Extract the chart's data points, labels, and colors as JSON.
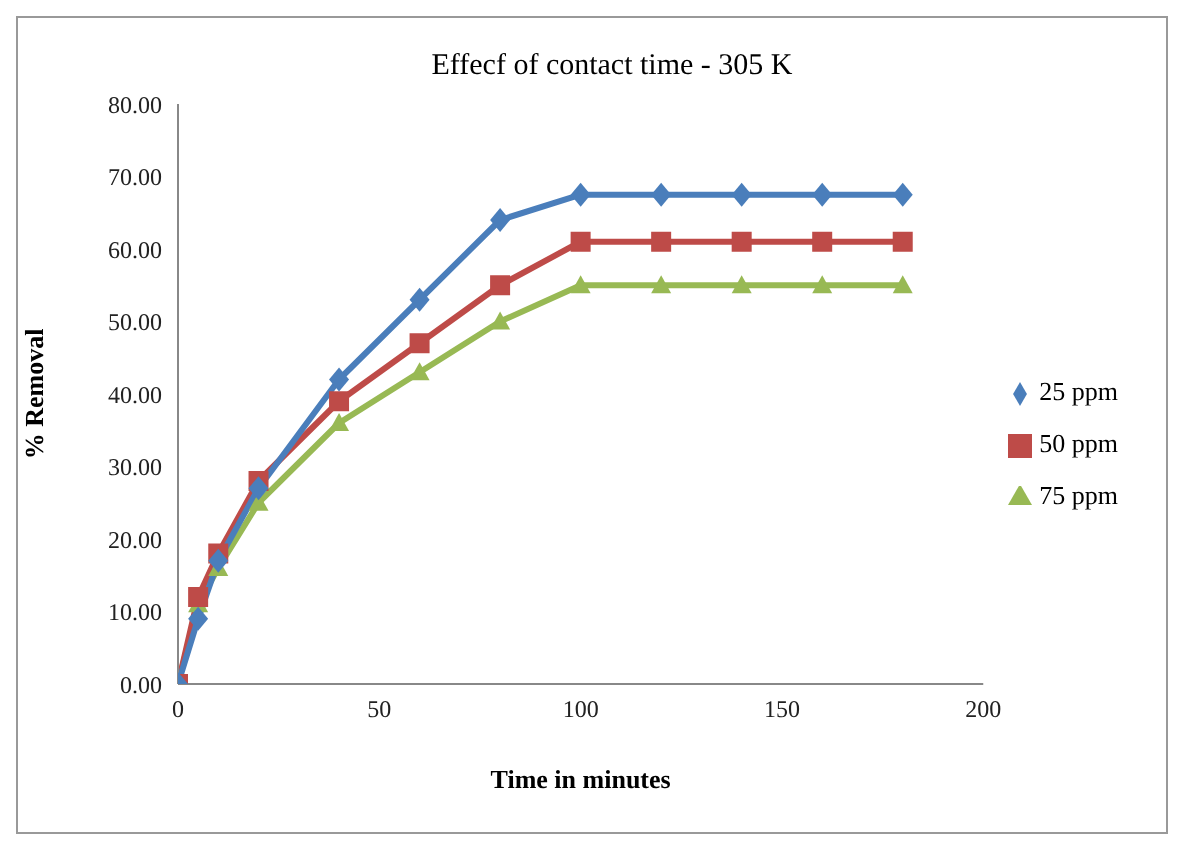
{
  "chart_data": {
    "type": "line",
    "title": "Effecf of contact time - 305 K",
    "xlabel": "Time in minutes",
    "ylabel": "% Removal",
    "x": [
      0,
      5,
      10,
      20,
      40,
      60,
      80,
      100,
      120,
      140,
      160,
      180
    ],
    "series": [
      {
        "name": "25 ppm",
        "color": "#4a7ebb",
        "marker": "diamond",
        "values": [
          0,
          9,
          17,
          27,
          42,
          53,
          64,
          67.5,
          67.5,
          67.5,
          67.5,
          67.5
        ]
      },
      {
        "name": "50 ppm",
        "color": "#be4b48",
        "marker": "square",
        "values": [
          0,
          12,
          18,
          28,
          39,
          47,
          55,
          61,
          61,
          61,
          61,
          61
        ]
      },
      {
        "name": "75 ppm",
        "color": "#98b954",
        "marker": "triangle",
        "values": [
          0,
          11,
          16,
          25,
          36,
          43,
          50,
          55,
          55,
          55,
          55,
          55
        ]
      }
    ],
    "xlim": [
      0,
      200
    ],
    "xticks": [
      0,
      50,
      100,
      150,
      200
    ],
    "ylim": [
      0,
      80
    ],
    "yticks": [
      {
        "value": 0,
        "label": "0.00"
      },
      {
        "value": 10,
        "label": "10.00"
      },
      {
        "value": 20,
        "label": "20.00"
      },
      {
        "value": 30,
        "label": "30.00"
      },
      {
        "value": 40,
        "label": "40.00"
      },
      {
        "value": 50,
        "label": "50.00"
      },
      {
        "value": 60,
        "label": "60.00"
      },
      {
        "value": 70,
        "label": "70.00"
      },
      {
        "value": 80,
        "label": "80.00"
      }
    ],
    "grid": false,
    "legend": "right"
  }
}
